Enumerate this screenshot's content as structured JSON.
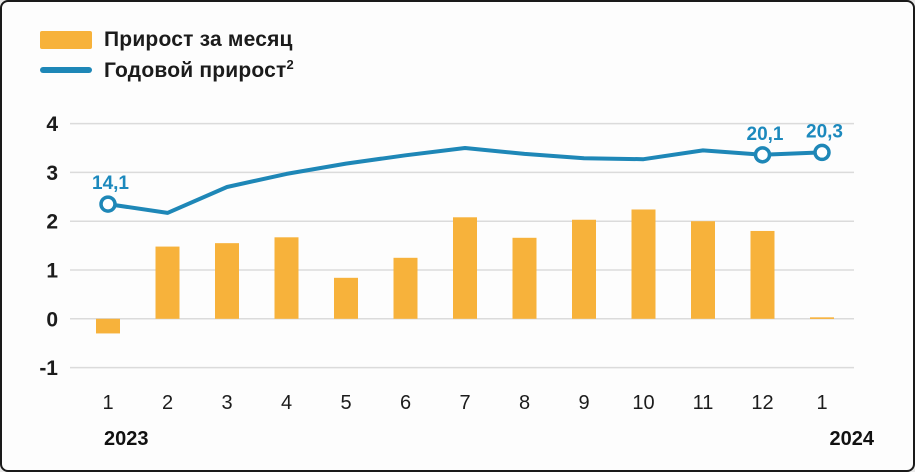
{
  "legend": {
    "items": [
      {
        "label": "Прирост за месяц",
        "swatch": "bar"
      },
      {
        "label": "Годовой прирост",
        "superscript": "2",
        "swatch": "line"
      }
    ]
  },
  "colors": {
    "bar": "#F7B23B",
    "line": "#1E87B7",
    "annotation": "#1C89BD",
    "grid": "#DBDBDB",
    "text": "#1C1C1C"
  },
  "chart_data": {
    "type": "bar+line",
    "title": "",
    "categories": [
      "1",
      "2",
      "3",
      "4",
      "5",
      "6",
      "7",
      "8",
      "9",
      "10",
      "11",
      "12",
      "1"
    ],
    "x_axis": {
      "year_start_label": "2023",
      "year_end_label": "2024"
    },
    "y_axis": {
      "ticks": [
        4,
        3,
        2,
        1,
        0,
        -1
      ],
      "ylim": [
        -1,
        4
      ],
      "grid": true
    },
    "legend_position": "top-left",
    "series": [
      {
        "name": "Прирост за месяц",
        "type": "bar",
        "color": "#F7B23B",
        "values": [
          -0.3,
          1.48,
          1.55,
          1.67,
          0.84,
          1.25,
          2.08,
          1.66,
          2.03,
          2.24,
          2.0,
          1.8,
          0.03
        ]
      },
      {
        "name": "Годовой прирост",
        "type": "line",
        "color": "#1E87B7",
        "values_axis_units": [
          2.35,
          2.17,
          2.7,
          2.97,
          3.18,
          3.35,
          3.5,
          3.38,
          3.29,
          3.27,
          3.45,
          3.36,
          3.41
        ],
        "point_labels": [
          {
            "index": 0,
            "label": "14,1"
          },
          {
            "index": 11,
            "label": "20,1"
          },
          {
            "index": 12,
            "label": "20,3"
          }
        ]
      }
    ]
  }
}
